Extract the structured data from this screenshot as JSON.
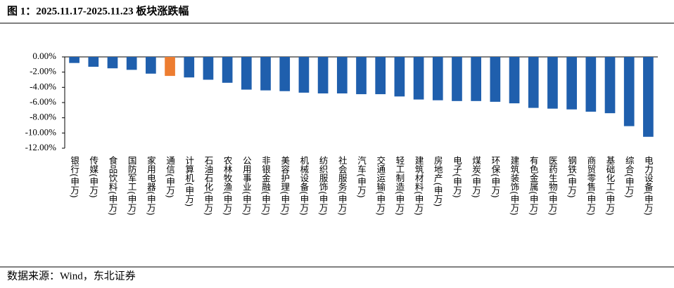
{
  "chart_data": {
    "type": "bar",
    "title": "图 1：2025.11.17-2025.11.23 板块涨跌幅",
    "source": "数据来源：Wind，东北证券",
    "categories": [
      "银行(申万)",
      "传媒(申万)",
      "食品饮料(申万)",
      "国防军工(申万)",
      "家用电器(申万)",
      "通信(申万)",
      "计算机(申万)",
      "石油石化(申万)",
      "农林牧渔(申万)",
      "公用事业(申万)",
      "非银金融(申万)",
      "美容护理(申万)",
      "机械设备(申万)",
      "纺织服饰(申万)",
      "社会服务(申万)",
      "汽车(申万)",
      "交通运输(申万)",
      "轻工制造(申万)",
      "建筑材料(申万)",
      "房地产(申万)",
      "电子(申万)",
      "煤炭(申万)",
      "环保(申万)",
      "建筑装饰(申万)",
      "有色金属(申万)",
      "医药生物(申万)",
      "钢铁(申万)",
      "商贸零售(申万)",
      "基础化工(申万)",
      "综合(申万)",
      "电力设备(申万)"
    ],
    "values": [
      -0.8,
      -1.3,
      -1.5,
      -1.7,
      -2.2,
      -2.5,
      -2.7,
      -3.0,
      -3.4,
      -4.3,
      -4.4,
      -4.5,
      -4.7,
      -4.8,
      -4.8,
      -4.9,
      -4.9,
      -5.2,
      -5.6,
      -5.7,
      -5.8,
      -5.8,
      -5.9,
      -6.1,
      -6.7,
      -6.8,
      -6.9,
      -7.2,
      -7.4,
      -9.1,
      -10.5
    ],
    "colors": [
      "#1f5fad",
      "#1f5fad",
      "#1f5fad",
      "#1f5fad",
      "#1f5fad",
      "#ed7d31",
      "#1f5fad",
      "#1f5fad",
      "#1f5fad",
      "#1f5fad",
      "#1f5fad",
      "#1f5fad",
      "#1f5fad",
      "#1f5fad",
      "#1f5fad",
      "#1f5fad",
      "#1f5fad",
      "#1f5fad",
      "#1f5fad",
      "#1f5fad",
      "#1f5fad",
      "#1f5fad",
      "#1f5fad",
      "#1f5fad",
      "#1f5fad",
      "#1f5fad",
      "#1f5fad",
      "#1f5fad",
      "#1f5fad",
      "#1f5fad",
      "#1f5fad"
    ],
    "ylim": [
      -12,
      0
    ],
    "yticks": [
      {
        "value": 0,
        "label": "0.00%"
      },
      {
        "value": -2,
        "label": "-2.00%"
      },
      {
        "value": -4,
        "label": "-4.00%"
      },
      {
        "value": -6,
        "label": "-6.00%"
      },
      {
        "value": -8,
        "label": "-8.00%"
      },
      {
        "value": -10,
        "label": "-10.00%"
      },
      {
        "value": -12,
        "label": "-12.00%"
      }
    ],
    "grid": false
  }
}
